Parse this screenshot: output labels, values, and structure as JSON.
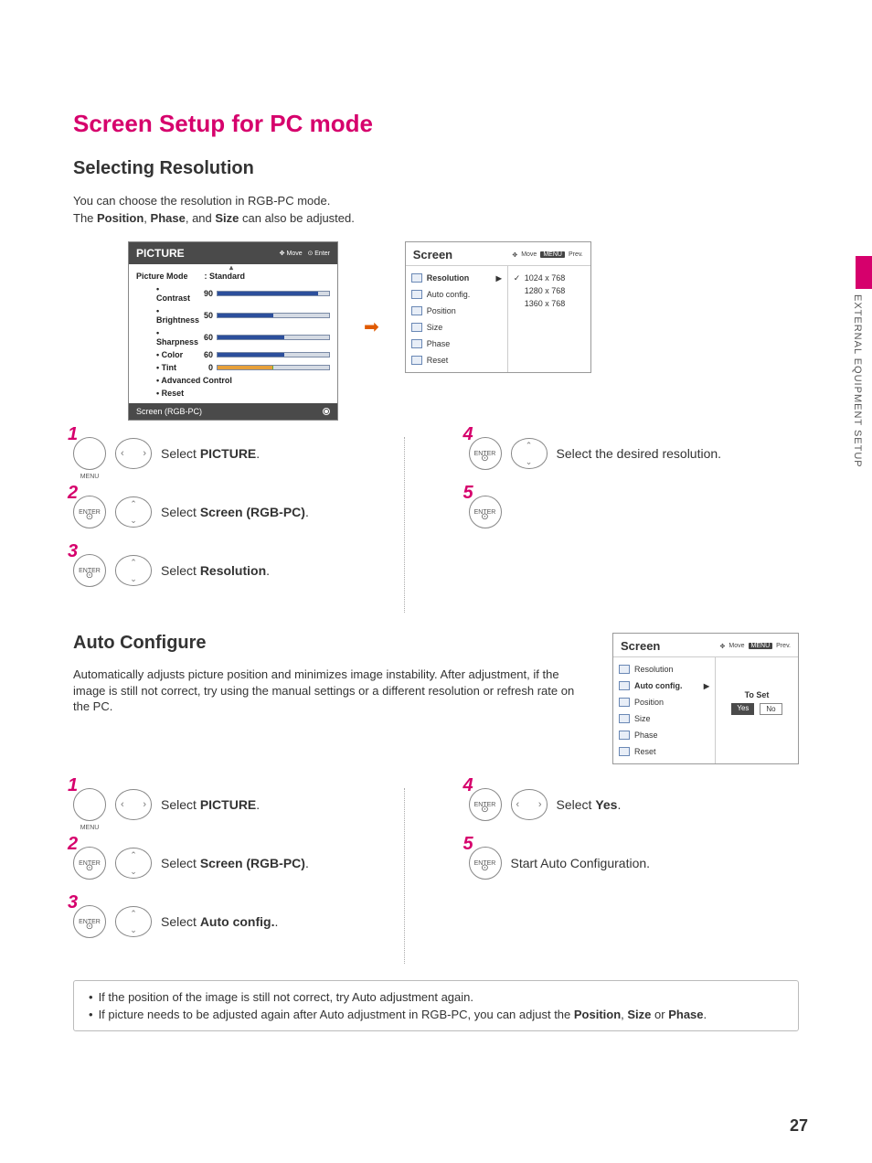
{
  "page": {
    "number": "27",
    "side_label": "EXTERNAL EQUIPMENT SETUP",
    "title": "Screen Setup for PC mode",
    "colors": {
      "accent": "#d6006c",
      "dark_panel": "#4a4a4a",
      "slider_fill": "#2c4f9c",
      "slider_track": "#d5dbe4",
      "tint_bar": "#e6a03a"
    }
  },
  "selecting_resolution": {
    "heading": "Selecting Resolution",
    "intro_line1": "You can choose the resolution in RGB-PC mode.",
    "intro_line2_prefix": "The ",
    "intro_bold_1": "Position",
    "intro_sep_1": ", ",
    "intro_bold_2": "Phase",
    "intro_sep_2": ", and ",
    "intro_bold_3": "Size",
    "intro_line2_suffix": " can also be adjusted."
  },
  "picture_osd": {
    "title": "PICTURE",
    "hint_move": "Move",
    "hint_enter": "Enter",
    "mode_label": "Picture Mode",
    "mode_value": ": Standard",
    "sliders": [
      {
        "label": "• Contrast",
        "value": "90",
        "fill": 90
      },
      {
        "label": "• Brightness",
        "value": "50",
        "fill": 50
      },
      {
        "label": "• Sharpness",
        "value": "60",
        "fill": 60
      },
      {
        "label": "• Color",
        "value": "60",
        "fill": 60
      }
    ],
    "tint": {
      "label": "• Tint",
      "value": "0",
      "fill": 50
    },
    "advanced": "• Advanced Control",
    "reset": "• Reset",
    "footer": "Screen (RGB-PC)"
  },
  "screen_osd_1": {
    "title": "Screen",
    "hint_move": "Move",
    "hint_menu": "MENU",
    "hint_prev": "Prev.",
    "items": [
      {
        "label": "Resolution",
        "selected": true,
        "arrow": "▶"
      },
      {
        "label": "Auto config."
      },
      {
        "label": "Position"
      },
      {
        "label": "Size"
      },
      {
        "label": "Phase"
      },
      {
        "label": "Reset"
      }
    ],
    "resolutions": [
      {
        "label": "1024 x 768",
        "checked": true
      },
      {
        "label": "1280 x 768"
      },
      {
        "label": "1360 x 768"
      }
    ]
  },
  "screen_osd_2": {
    "title": "Screen",
    "hint_move": "Move",
    "hint_menu": "MENU",
    "hint_prev": "Prev.",
    "items": [
      {
        "label": "Resolution"
      },
      {
        "label": "Auto config.",
        "selected": true,
        "arrow": "▶"
      },
      {
        "label": "Position"
      },
      {
        "label": "Size"
      },
      {
        "label": "Phase"
      },
      {
        "label": "Reset"
      }
    ],
    "toset": {
      "label": "To Set",
      "yes": "Yes",
      "no": "No"
    }
  },
  "steps_resolution": {
    "left": [
      {
        "num": "1",
        "btn": "MENU",
        "nav": "lr",
        "prefix": "Select ",
        "bold": "PICTURE",
        "suffix": "."
      },
      {
        "num": "2",
        "btn": "ENTER",
        "nav": "updown",
        "prefix": "Select ",
        "bold": "Screen (RGB-PC)",
        "suffix": "."
      },
      {
        "num": "3",
        "btn": "ENTER",
        "nav": "updown",
        "prefix": "Select ",
        "bold": "Resolution",
        "suffix": "."
      }
    ],
    "right": [
      {
        "num": "4",
        "btn": "ENTER",
        "nav": "updown",
        "text": "Select the desired resolution."
      },
      {
        "num": "5",
        "btn": "ENTER",
        "nav": "",
        "text": ""
      }
    ]
  },
  "auto_configure": {
    "heading": "Auto Configure",
    "body": "Automatically adjusts picture position and minimizes image instability. After adjustment, if the image is still not correct, try using the manual settings or a different resolution or refresh rate on the PC."
  },
  "steps_auto": {
    "left": [
      {
        "num": "1",
        "btn": "MENU",
        "nav": "lr",
        "prefix": "Select ",
        "bold": "PICTURE",
        "suffix": "."
      },
      {
        "num": "2",
        "btn": "ENTER",
        "nav": "updown",
        "prefix": "Select ",
        "bold": "Screen (RGB-PC)",
        "suffix": "."
      },
      {
        "num": "3",
        "btn": "ENTER",
        "nav": "updown",
        "prefix": "Select ",
        "bold": "Auto config.",
        "suffix": "."
      }
    ],
    "right": [
      {
        "num": "4",
        "btn": "ENTER",
        "nav": "lr",
        "prefix": "Select ",
        "bold": "Yes",
        "suffix": "."
      },
      {
        "num": "5",
        "btn": "ENTER",
        "nav": "",
        "text": "Start Auto Configuration."
      }
    ]
  },
  "notes": {
    "line1": "If the position of the image is still not correct, try Auto adjustment again.",
    "line2_prefix": "If picture needs to be adjusted again after Auto adjustment in RGB-PC, you can adjust the ",
    "line2_b1": "Position",
    "line2_s1": ", ",
    "line2_b2": "Size",
    "line2_s2": " or ",
    "line2_b3": "Phase",
    "line2_suffix": "."
  }
}
